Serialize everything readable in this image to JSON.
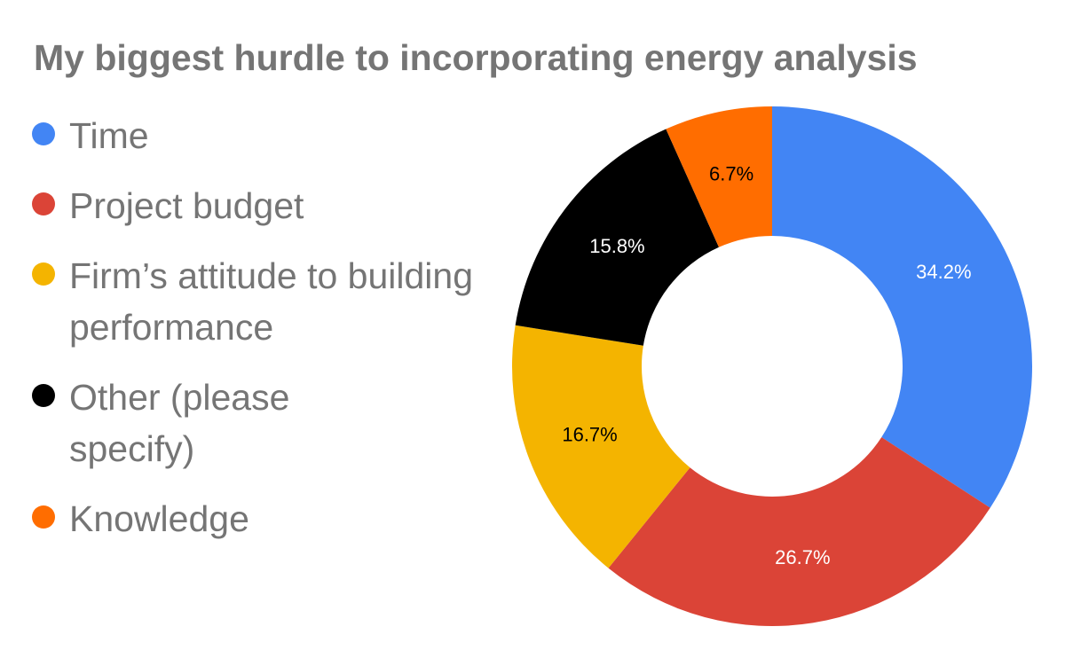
{
  "chart_data": {
    "type": "donut",
    "title": "My biggest hurdle to incorporating energy analysis",
    "categories": [
      "Time",
      "Project budget",
      "Firm’s attitude to building performance",
      "Other (please specify)",
      "Knowledge"
    ],
    "values": [
      34.2,
      26.7,
      16.7,
      15.8,
      6.7
    ],
    "value_labels": [
      "34.2%",
      "26.7%",
      "16.7%",
      "15.8%",
      "6.7%"
    ],
    "colors": [
      "#4285f4",
      "#db4437",
      "#f4b400",
      "#000000",
      "#ff6d00"
    ],
    "label_colors": [
      "#ffffff",
      "#ffffff",
      "#000000",
      "#ffffff",
      "#000000"
    ],
    "legend": "left"
  }
}
